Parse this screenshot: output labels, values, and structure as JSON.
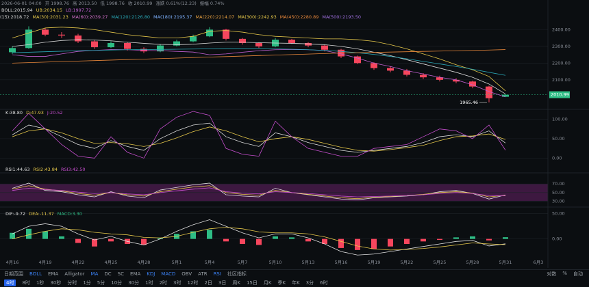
{
  "header": {
    "datetime": "2026-06-01 04:00",
    "open": "开 1998.76",
    "high": "高 2013.50",
    "low": "低 1998.76",
    "close": "收 2010.99",
    "change": "涨跌 0.61%(12.23)",
    "amplitude": "振幅 0.74%"
  },
  "chart_data": [
    {
      "type": "candlestick",
      "ylim": [
        1940,
        2520
      ],
      "yticks": [
        {
          "value": 2400,
          "label": "2400.00"
        },
        {
          "value": 2300,
          "label": "2300.00"
        },
        {
          "value": 2200,
          "label": "2200.00"
        },
        {
          "value": 2100,
          "label": "2100.00"
        }
      ],
      "grid": true,
      "up_color": "#2ebd85",
      "down_color": "#f6465d",
      "open": [
        2265,
        2290,
        2400,
        2370,
        2365,
        2330,
        2295,
        2320,
        2285,
        2270,
        2305,
        2330,
        2360,
        2400,
        2345,
        2320,
        2300,
        2340,
        2320,
        2305,
        2280,
        2240,
        2200,
        2170,
        2155,
        2130,
        2115,
        2100,
        2090,
        2060,
        1998.76,
        null,
        null
      ],
      "high": [
        2300,
        2420,
        2410,
        2385,
        2375,
        2340,
        2330,
        2325,
        2295,
        2315,
        2340,
        2370,
        2415,
        2405,
        2350,
        2325,
        2350,
        2345,
        2325,
        2310,
        2285,
        2245,
        2205,
        2180,
        2165,
        2140,
        2125,
        2110,
        2095,
        2065,
        2013.5,
        null,
        null
      ],
      "low": [
        2255,
        2285,
        2360,
        2350,
        2320,
        2285,
        2290,
        2275,
        2260,
        2265,
        2300,
        2325,
        2355,
        2335,
        2310,
        2290,
        2295,
        2315,
        2295,
        2270,
        2230,
        2195,
        2160,
        2145,
        2120,
        2105,
        2090,
        2080,
        2050,
        1965.46,
        1998.76,
        null,
        null
      ],
      "close": [
        2290,
        2400,
        2370,
        2365,
        2330,
        2295,
        2320,
        2285,
        2270,
        2305,
        2330,
        2360,
        2400,
        2345,
        2320,
        2300,
        2340,
        2320,
        2305,
        2280,
        2240,
        2200,
        2170,
        2155,
        2130,
        2115,
        2100,
        2090,
        2060,
        1990,
        2010.99,
        null,
        null
      ],
      "series": [
        {
          "name": "BOLL:2015.94",
          "color": "#d9d9d9",
          "values": [
            2300,
            2310,
            2325,
            2335,
            2340,
            2338,
            2333,
            2325,
            2318,
            2312,
            2310,
            2313,
            2320,
            2325,
            2325,
            2322,
            2320,
            2318,
            2315,
            2310,
            2300,
            2285,
            2265,
            2245,
            2220,
            2195,
            2170,
            2145,
            2115,
            2075,
            2015.94,
            null,
            null
          ]
        },
        {
          "name": "UB:2034.15",
          "color": "#e6c84a",
          "values": [
            2350,
            2380,
            2410,
            2415,
            2410,
            2400,
            2385,
            2370,
            2360,
            2350,
            2350,
            2360,
            2390,
            2395,
            2385,
            2370,
            2360,
            2355,
            2350,
            2345,
            2345,
            2340,
            2330,
            2310,
            2285,
            2255,
            2225,
            2190,
            2160,
            2120,
            2034.15,
            null,
            null
          ]
        },
        {
          "name": "LB:1997.72",
          "color": "#c05fd0",
          "values": [
            2250,
            2240,
            2240,
            2255,
            2270,
            2276,
            2281,
            2280,
            2276,
            2274,
            2270,
            2266,
            2250,
            2255,
            2265,
            2274,
            2280,
            2281,
            2280,
            2275,
            2255,
            2230,
            2200,
            2180,
            2155,
            2135,
            2115,
            2100,
            2070,
            2030,
            1997.72,
            null,
            null
          ]
        },
        {
          "name": "MA(120):2126.80",
          "color": "#2aa9b8",
          "values": [
            2262,
            2265,
            2268,
            2271,
            2274,
            2276,
            2278,
            2280,
            2281,
            2282,
            2283,
            2284,
            2285,
            2286,
            2286,
            2286,
            2285,
            2283,
            2280,
            2276,
            2270,
            2262,
            2252,
            2240,
            2226,
            2210,
            2195,
            2180,
            2163,
            2145,
            2126.8,
            null,
            null
          ]
        },
        {
          "name": "MA(450):2280.89",
          "color": "#e8873a",
          "values": [
            2200,
            2203,
            2206,
            2209,
            2212,
            2215,
            2218,
            2221,
            2224,
            2227,
            2230,
            2233,
            2236,
            2239,
            2242,
            2245,
            2248,
            2251,
            2254,
            2257,
            2260,
            2262,
            2264,
            2266,
            2268,
            2270,
            2272,
            2274,
            2276,
            2278,
            2280.89,
            null,
            null
          ]
        }
      ],
      "ma_readouts": [
        {
          "label": "(15):2018.72",
          "color": "#d9d9d9"
        },
        {
          "label": "MA(30):2031.23",
          "color": "#e6c84a"
        },
        {
          "label": "MA(60):2039.27",
          "color": "#d070c8"
        },
        {
          "label": "MA(180):2195.37",
          "color": "#7fb2ff"
        },
        {
          "label": "MA(220):2214.07",
          "color": "#e8a040"
        },
        {
          "label": "MA(300):2242.93",
          "color": "#e6c84a"
        },
        {
          "label": "MA(500):2193.50",
          "color": "#a070e0"
        }
      ]
    },
    {
      "type": "line",
      "ylim": [
        -15,
        120
      ],
      "yticks": [
        {
          "value": 100,
          "label": "100.00"
        },
        {
          "value": 50,
          "label": "50.00"
        },
        {
          "value": 0,
          "label": "0.00"
        }
      ],
      "grid": true,
      "series": [
        {
          "name": "K:38.80",
          "color": "#e0e0e0",
          "values": [
            60,
            85,
            75,
            55,
            35,
            25,
            45,
            30,
            20,
            50,
            70,
            85,
            90,
            55,
            40,
            30,
            65,
            55,
            40,
            30,
            20,
            15,
            20,
            25,
            30,
            40,
            55,
            60,
            55,
            70,
            38.8,
            null,
            null
          ]
        },
        {
          "name": "D:47.93",
          "color": "#e6c84a",
          "values": [
            55,
            70,
            75,
            65,
            50,
            38,
            40,
            37,
            30,
            38,
            52,
            68,
            80,
            70,
            55,
            42,
            50,
            55,
            48,
            38,
            28,
            20,
            18,
            22,
            27,
            33,
            45,
            55,
            57,
            62,
            47.93,
            null,
            null
          ]
        },
        {
          "name": "J:20.52",
          "color": "#c84fd0",
          "values": [
            70,
            115,
            75,
            35,
            5,
            0,
            55,
            15,
            0,
            75,
            105,
            120,
            110,
            25,
            10,
            5,
            95,
            55,
            25,
            15,
            5,
            5,
            25,
            30,
            35,
            55,
            75,
            70,
            50,
            85,
            20.52,
            null,
            null
          ]
        }
      ]
    },
    {
      "type": "line",
      "ylim": [
        18,
        91
      ],
      "yticks": [
        {
          "value": 70,
          "label": "70.00"
        },
        {
          "value": 50,
          "label": "50.00"
        },
        {
          "value": 30,
          "label": "30.00"
        }
      ],
      "grid": true,
      "band": [
        30,
        70
      ],
      "band_color": "#3d1840",
      "series": [
        {
          "name": "RSI1:44.63",
          "color": "#e0e0e0",
          "values": [
            60,
            72,
            55,
            52,
            45,
            40,
            52,
            42,
            38,
            56,
            62,
            68,
            72,
            45,
            42,
            40,
            60,
            50,
            45,
            40,
            35,
            33,
            38,
            40,
            42,
            45,
            52,
            55,
            48,
            35,
            44.63,
            null,
            null
          ]
        },
        {
          "name": "RSI2:43.84",
          "color": "#e6c84a",
          "values": [
            58,
            66,
            58,
            54,
            48,
            44,
            50,
            45,
            42,
            52,
            58,
            63,
            66,
            50,
            46,
            44,
            55,
            50,
            46,
            42,
            38,
            36,
            39,
            41,
            43,
            46,
            50,
            52,
            49,
            40,
            43.84,
            null,
            null
          ]
        },
        {
          "name": "RSI3:42.50",
          "color": "#c84fd0",
          "values": [
            55,
            60,
            57,
            55,
            51,
            48,
            50,
            47,
            45,
            50,
            54,
            58,
            61,
            52,
            49,
            47,
            52,
            50,
            48,
            45,
            42,
            40,
            41,
            42,
            43,
            45,
            48,
            50,
            48,
            43,
            42.5,
            null,
            null
          ]
        }
      ]
    },
    {
      "type": "bar",
      "ylim": [
        -33,
        59
      ],
      "yticks": [
        {
          "value": 50,
          "label": "50.00"
        },
        {
          "value": 0,
          "label": "0.00"
        }
      ],
      "grid": true,
      "up_color": "#2ebd85",
      "down_color": "#f6465d",
      "categories": [
        "4月16",
        null,
        "4月19",
        null,
        "4月22",
        null,
        "4月25",
        null,
        "4月28",
        null,
        "5月1",
        null,
        "5月4",
        null,
        "5月7",
        null,
        "5月10",
        null,
        "5月13",
        null,
        "5月16",
        null,
        "5月19",
        null,
        "5月22",
        null,
        "5月25",
        null,
        "5月28",
        null,
        "5月31",
        null,
        "6月3"
      ],
      "values": [
        12,
        20,
        15,
        5,
        -8,
        -15,
        -5,
        -10,
        -12,
        2,
        10,
        15,
        18,
        -5,
        -10,
        -12,
        5,
        3,
        -5,
        -10,
        -18,
        -22,
        -20,
        -15,
        -10,
        -5,
        -2,
        3,
        5,
        -3,
        3.3,
        null,
        null
      ],
      "series": [
        {
          "name": "DIF:-9.72",
          "color": "#e0e0e0",
          "values": [
            10,
            25,
            30,
            25,
            10,
            -2,
            5,
            -5,
            -12,
            0,
            15,
            28,
            38,
            25,
            12,
            2,
            10,
            10,
            2,
            -10,
            -25,
            -32,
            -30,
            -25,
            -20,
            -15,
            -10,
            -5,
            -3,
            -14,
            -9.72,
            null,
            null
          ]
        },
        {
          "name": "DEA:-11.37",
          "color": "#e6c84a",
          "values": [
            0,
            8,
            15,
            20,
            18,
            13,
            10,
            8,
            3,
            2,
            5,
            13,
            20,
            23,
            20,
            14,
            12,
            12,
            10,
            4,
            -5,
            -14,
            -20,
            -22,
            -21,
            -19,
            -16,
            -12,
            -8,
            -10,
            -11.37,
            null,
            null
          ]
        }
      ],
      "hist_name": "MACD:3.30"
    }
  ],
  "toolbar": {
    "date_range": "日期范围",
    "indicators": [
      {
        "label": "BOLL",
        "active": true
      },
      {
        "label": "EMA",
        "active": false
      },
      {
        "label": "Alligator",
        "active": false
      },
      {
        "label": "MA",
        "active": true
      },
      {
        "label": "DC",
        "active": false
      },
      {
        "label": "SC",
        "active": false
      },
      {
        "label": "EMA",
        "active": false
      },
      {
        "label": "KDJ",
        "active": true
      },
      {
        "label": "MACD",
        "active": true
      },
      {
        "label": "OBV",
        "active": false
      },
      {
        "label": "ATR",
        "active": false
      },
      {
        "label": "RSI",
        "active": true
      },
      {
        "label": "社区指标",
        "active": false
      }
    ],
    "right": [
      "对数",
      "%",
      "自动"
    ],
    "intervals": [
      {
        "label": "4时",
        "active": true
      },
      {
        "label": "8时",
        "active": false
      },
      {
        "label": "1秒",
        "active": false
      },
      {
        "label": "30秒",
        "active": false
      },
      {
        "label": "分时",
        "active": false
      },
      {
        "label": "1分",
        "active": false
      },
      {
        "label": "5分",
        "active": false
      },
      {
        "label": "10分",
        "active": false
      },
      {
        "label": "30分",
        "active": false
      },
      {
        "label": "1时",
        "active": false
      },
      {
        "label": "2时",
        "active": false
      },
      {
        "label": "3时",
        "active": false
      },
      {
        "label": "12时",
        "active": false
      },
      {
        "label": "2日",
        "active": false
      },
      {
        "label": "3日",
        "active": false
      },
      {
        "label": "周K",
        "active": false
      },
      {
        "label": "15日",
        "active": false
      },
      {
        "label": "月K",
        "active": false
      },
      {
        "label": "季K",
        "active": false
      },
      {
        "label": "年K",
        "active": false
      },
      {
        "label": "3分",
        "active": false
      },
      {
        "label": "6时",
        "active": false
      }
    ]
  }
}
